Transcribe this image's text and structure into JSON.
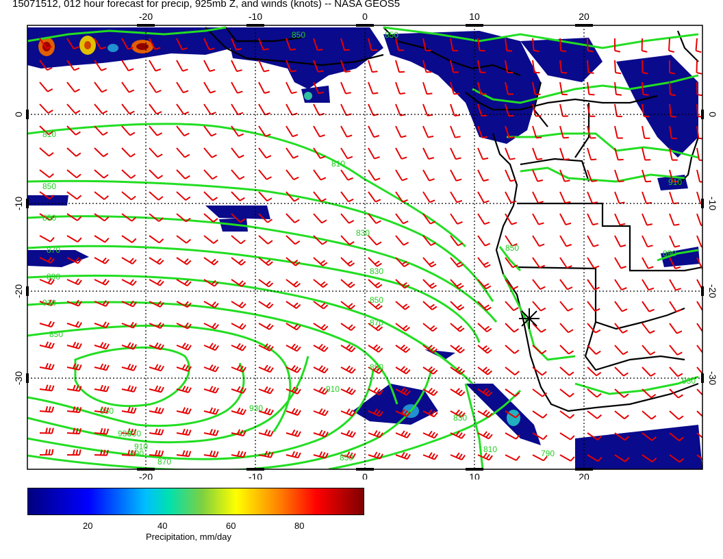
{
  "title": "15071512, 012 hour forecast for precip, 925mb Z, and winds (knots) -- NASA GEOS5",
  "map": {
    "lon_ticks_top": [
      "-20",
      "-10",
      "0",
      "10",
      "20"
    ],
    "lon_ticks_bottom": [
      "-20",
      "-10",
      "0",
      "10",
      "20"
    ],
    "lat_ticks_left": [
      "0",
      "-10",
      "-20",
      "-30"
    ],
    "lat_ticks_right": [
      "0",
      "-10",
      "-20",
      "-30"
    ],
    "contour_labels": [
      "810",
      "850",
      "850",
      "870",
      "890",
      "910",
      "930",
      "950",
      "930",
      "910",
      "890",
      "870",
      "850",
      "830",
      "810",
      "830",
      "850",
      "870",
      "890",
      "910",
      "930",
      "850",
      "830",
      "810",
      "790",
      "850",
      "850",
      "890",
      "910",
      "930",
      "850"
    ],
    "colors": {
      "land_border": "#000000",
      "contour": "#22dd22",
      "wind_barb": "#e60000",
      "precip_low": "#0a0a8c",
      "precip_high": "#b00000"
    }
  },
  "colorbar": {
    "ticks": [
      "20",
      "40",
      "60",
      "80"
    ],
    "label": "Precipitation, mm/day"
  }
}
